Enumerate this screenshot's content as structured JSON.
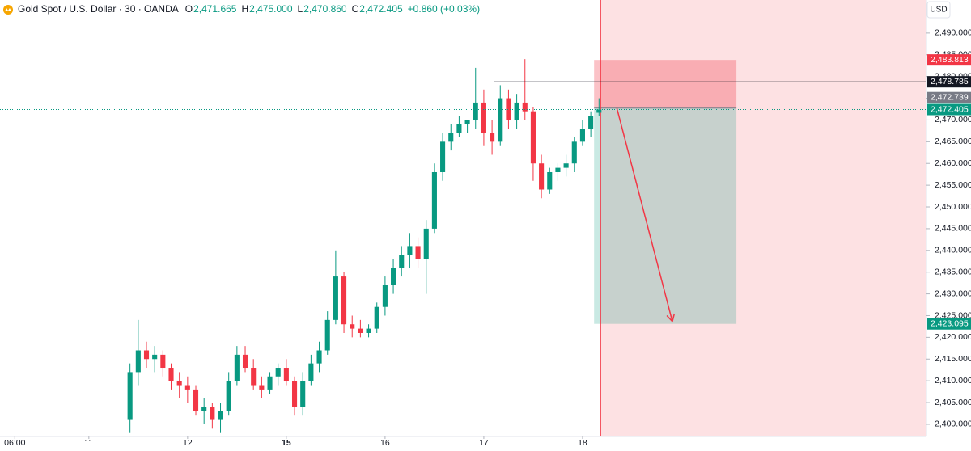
{
  "chart_data": {
    "type": "candlestick",
    "title": "Gold Spot / U.S. Dollar · 30 · OANDA",
    "ohlc_header": [
      {
        "prefix": "O",
        "value": "2,471.665"
      },
      {
        "prefix": "H",
        "value": "2,475.000"
      },
      {
        "prefix": "L",
        "value": "2,470.860"
      },
      {
        "prefix": "C",
        "value": "2,472.405"
      }
    ],
    "change": "+0.860 (+0.03%)",
    "currency": "USD",
    "up_color": "#089981",
    "down_color": "#f23645",
    "x": [
      5,
      6,
      7,
      8,
      9,
      10,
      11,
      12,
      13,
      14,
      15,
      16,
      17,
      18,
      19,
      20,
      21,
      22,
      23,
      24,
      25,
      26,
      27,
      28,
      29,
      30,
      31,
      32,
      33,
      34,
      35,
      36,
      37,
      38,
      39,
      40,
      41,
      42,
      43,
      44,
      45,
      46,
      47,
      48,
      49,
      50,
      51,
      52,
      53,
      54,
      55,
      56,
      57,
      58,
      59,
      60,
      61,
      62
    ],
    "open": [
      2401,
      2412,
      2417,
      2415,
      2416,
      2413,
      2410,
      2409,
      2408,
      2403,
      2404,
      2401,
      2403,
      2410,
      2416,
      2413,
      2409,
      2408,
      2411,
      2413,
      2410,
      2404,
      2410,
      2414,
      2417,
      2424,
      2434,
      2423,
      2422,
      2421,
      2422,
      2427,
      2432,
      2436,
      2439,
      2441,
      2438,
      2445,
      2458,
      2465,
      2467,
      2469,
      2470,
      2474,
      2467,
      2465,
      2475,
      2470,
      2474,
      2472,
      2460,
      2454,
      2458,
      2459,
      2460,
      2465,
      2468,
      2471.665
    ],
    "high": [
      2414,
      2424,
      2419,
      2418,
      2417,
      2414,
      2412,
      2411,
      2409,
      2406,
      2405,
      2405,
      2412,
      2418,
      2418,
      2415,
      2411,
      2412,
      2414,
      2415,
      2411,
      2412,
      2416,
      2419,
      2426,
      2440,
      2435,
      2425,
      2424,
      2423,
      2428,
      2434,
      2438,
      2441,
      2444,
      2443,
      2447,
      2460,
      2467,
      2469,
      2471,
      2470,
      2482,
      2477,
      2470,
      2478,
      2477,
      2476,
      2484,
      2473,
      2462,
      2459,
      2460,
      2462,
      2466,
      2470,
      2472,
      2475
    ],
    "low": [
      2398,
      2409,
      2413,
      2412,
      2411,
      2408,
      2406,
      2405,
      2402,
      2400,
      2399,
      2398,
      2402,
      2409,
      2412,
      2408,
      2406,
      2407,
      2409,
      2409,
      2402,
      2402,
      2409,
      2412,
      2416,
      2423,
      2421,
      2420,
      2420,
      2420,
      2421,
      2425,
      2430,
      2434,
      2436,
      2436,
      2430,
      2444,
      2456,
      2463,
      2466,
      2467,
      2468,
      2464,
      2462,
      2464,
      2468,
      2468,
      2470,
      2456,
      2452,
      2453,
      2456,
      2457,
      2458,
      2464,
      2466,
      2470.86
    ],
    "close": [
      2412,
      2417,
      2415,
      2416,
      2413,
      2410,
      2409,
      2408,
      2403,
      2404,
      2401,
      2403,
      2410,
      2416,
      2413,
      2409,
      2408,
      2411,
      2413,
      2410,
      2404,
      2410,
      2414,
      2417,
      2424,
      2434,
      2423,
      2422,
      2421,
      2422,
      2427,
      2432,
      2436,
      2439,
      2441,
      2438,
      2445,
      2458,
      2465,
      2467,
      2469,
      2470,
      2474,
      2467,
      2465,
      2475,
      2470,
      2474,
      2472,
      2460,
      2454,
      2458,
      2459,
      2460,
      2465,
      2468,
      2471,
      2472.405
    ],
    "xlim": [
      -10.8,
      101.8
    ],
    "xticks": [
      {
        "value": -9,
        "label": "06:00"
      },
      {
        "value": 0,
        "label": "11"
      },
      {
        "value": 12,
        "label": "12"
      },
      {
        "value": 24,
        "label": "15"
      },
      {
        "value": 36,
        "label": "16"
      },
      {
        "value": 48,
        "label": "17"
      },
      {
        "value": 60,
        "label": "18"
      }
    ],
    "ylim": [
      2397.2,
      2497.6
    ],
    "yticks": [
      {
        "value": 2400,
        "label": "2,400.000"
      },
      {
        "value": 2405,
        "label": "2,405.000"
      },
      {
        "value": 2410,
        "label": "2,410.000"
      },
      {
        "value": 2415,
        "label": "2,415.000"
      },
      {
        "value": 2420,
        "label": "2,420.000"
      },
      {
        "value": 2425,
        "label": "2,425.000"
      },
      {
        "value": 2430,
        "label": "2,430.000"
      },
      {
        "value": 2435,
        "label": "2,435.000"
      },
      {
        "value": 2440,
        "label": "2,440.000"
      },
      {
        "value": 2445,
        "label": "2,445.000"
      },
      {
        "value": 2450,
        "label": "2,450.000"
      },
      {
        "value": 2455,
        "label": "2,455.000"
      },
      {
        "value": 2460,
        "label": "2,460.000"
      },
      {
        "value": 2465,
        "label": "2,465.000"
      },
      {
        "value": 2470,
        "label": "2,470.000"
      },
      {
        "value": 2475,
        "label": "2,475.000"
      },
      {
        "value": 2480,
        "label": "2,480.000"
      },
      {
        "value": 2485,
        "label": "2,485.000"
      },
      {
        "value": 2490,
        "label": "2,490.000"
      }
    ],
    "price_lines": [
      {
        "value": 2478.785,
        "label": "2,478.785",
        "color": "#131722",
        "style": "solid",
        "x_start": 49.2
      },
      {
        "value": 2472.405,
        "label": "2,472.405",
        "color": "#089981",
        "style": "dotted",
        "x_start": -10.8
      }
    ],
    "position": {
      "x_start": 61.4,
      "x_end": 78.7,
      "stop": {
        "value": 2483.813,
        "label": "2,483.813",
        "color": "#f23645"
      },
      "entry": {
        "value": 2472.739,
        "label": "2,472.739",
        "color": "#787b86"
      },
      "target": {
        "value": 2423.095,
        "label": "2,423.095",
        "color": "#089981"
      }
    }
  }
}
